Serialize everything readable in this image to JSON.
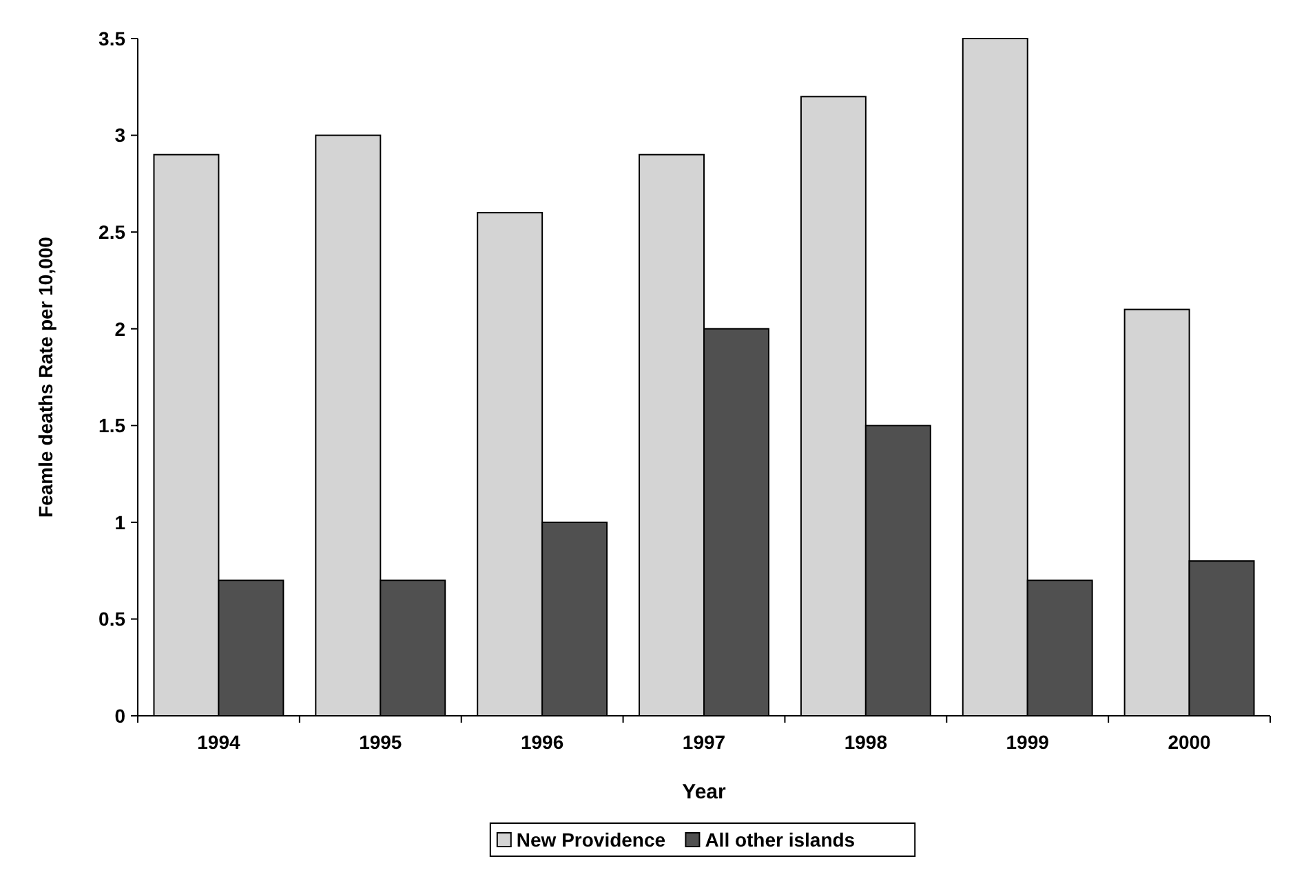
{
  "chart_data": {
    "type": "bar",
    "xlabel": "Year",
    "ylabel": "Feamle deaths Rate per 10,000",
    "categories": [
      "1994",
      "1995",
      "1996",
      "1997",
      "1998",
      "1999",
      "2000"
    ],
    "series": [
      {
        "name": "New Providence",
        "color": "#d4d4d4",
        "values": [
          2.9,
          3.0,
          2.6,
          2.9,
          3.2,
          3.5,
          2.1
        ]
      },
      {
        "name": "All other islands",
        "color": "#505050",
        "values": [
          0.7,
          0.7,
          1.0,
          2.0,
          1.5,
          0.7,
          0.8
        ]
      }
    ],
    "ylim": [
      0,
      3.5
    ],
    "yticks": [
      0,
      0.5,
      1,
      {
        "value": 1.5,
        "label": "1.5"
      },
      2,
      2.5,
      3,
      3.5
    ],
    "grid": false,
    "legend": "bottom"
  }
}
